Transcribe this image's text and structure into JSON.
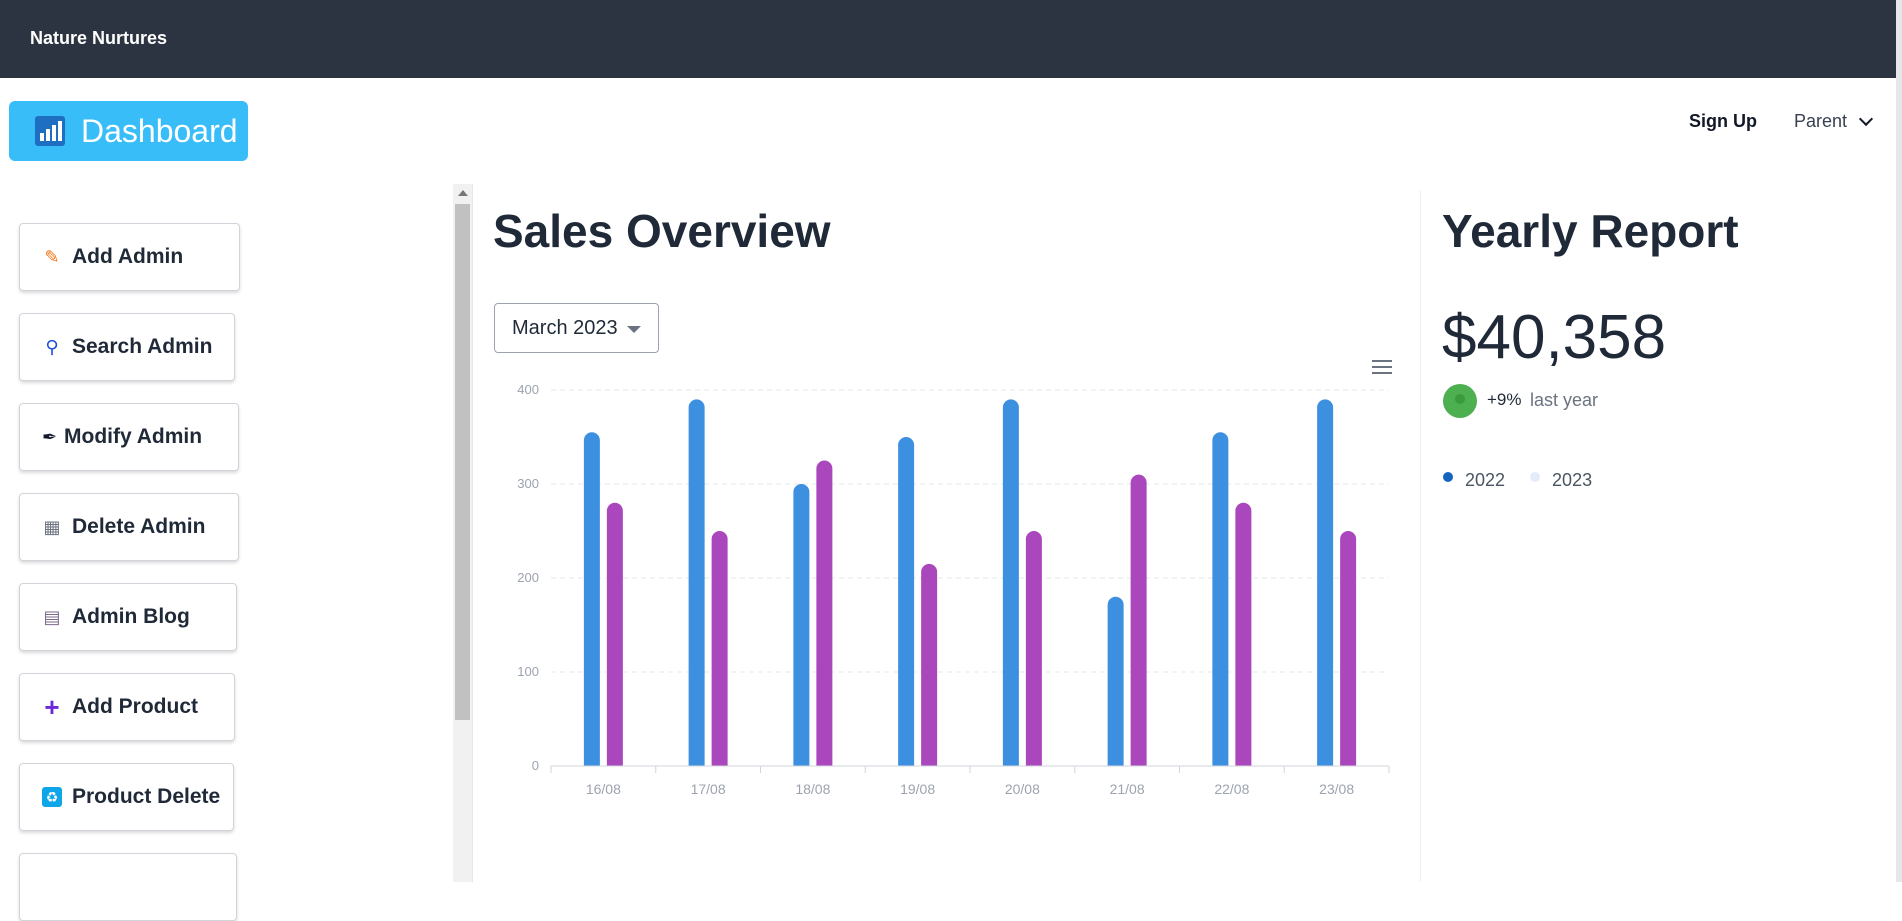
{
  "app": {
    "brand": "Nature Nurtures"
  },
  "header": {
    "dashboard_label": "Dashboard",
    "signup_label": "Sign Up",
    "parent_label": "Parent"
  },
  "sidebar": {
    "items": [
      {
        "label": "Add Admin",
        "icon": "pencil-icon"
      },
      {
        "label": "Search Admin",
        "icon": "magnifier-icon"
      },
      {
        "label": "Modify Admin",
        "icon": "pen-icon"
      },
      {
        "label": "Delete Admin",
        "icon": "wastebasket-icon"
      },
      {
        "label": "Admin Blog",
        "icon": "newspaper-icon"
      },
      {
        "label": "Add Product",
        "icon": "plus-icon"
      },
      {
        "label": "Product Delete",
        "icon": "litter-icon"
      }
    ]
  },
  "sales": {
    "title": "Sales Overview",
    "month_select": "March 2023"
  },
  "chart_data": {
    "type": "bar",
    "categories": [
      "16/08",
      "17/08",
      "18/08",
      "19/08",
      "20/08",
      "21/08",
      "22/08",
      "23/08"
    ],
    "series": [
      {
        "name": "2022",
        "color": "#3d8fe0",
        "values": [
          355,
          390,
          300,
          350,
          390,
          180,
          355,
          390
        ]
      },
      {
        "name": "2023",
        "color": "#ab47bc",
        "values": [
          280,
          250,
          325,
          215,
          250,
          310,
          280,
          250
        ]
      }
    ],
    "yticks": [
      "0",
      "100",
      "200",
      "300",
      "400"
    ],
    "ylim": [
      0,
      400
    ],
    "grid": true
  },
  "yearly": {
    "title": "Yearly Report",
    "amount": "$40,358",
    "change": "+9%",
    "period": "last year",
    "legend": [
      {
        "label": "2022",
        "color": "#1565c0"
      },
      {
        "label": "2023",
        "color": "#e3ecfb"
      }
    ]
  }
}
